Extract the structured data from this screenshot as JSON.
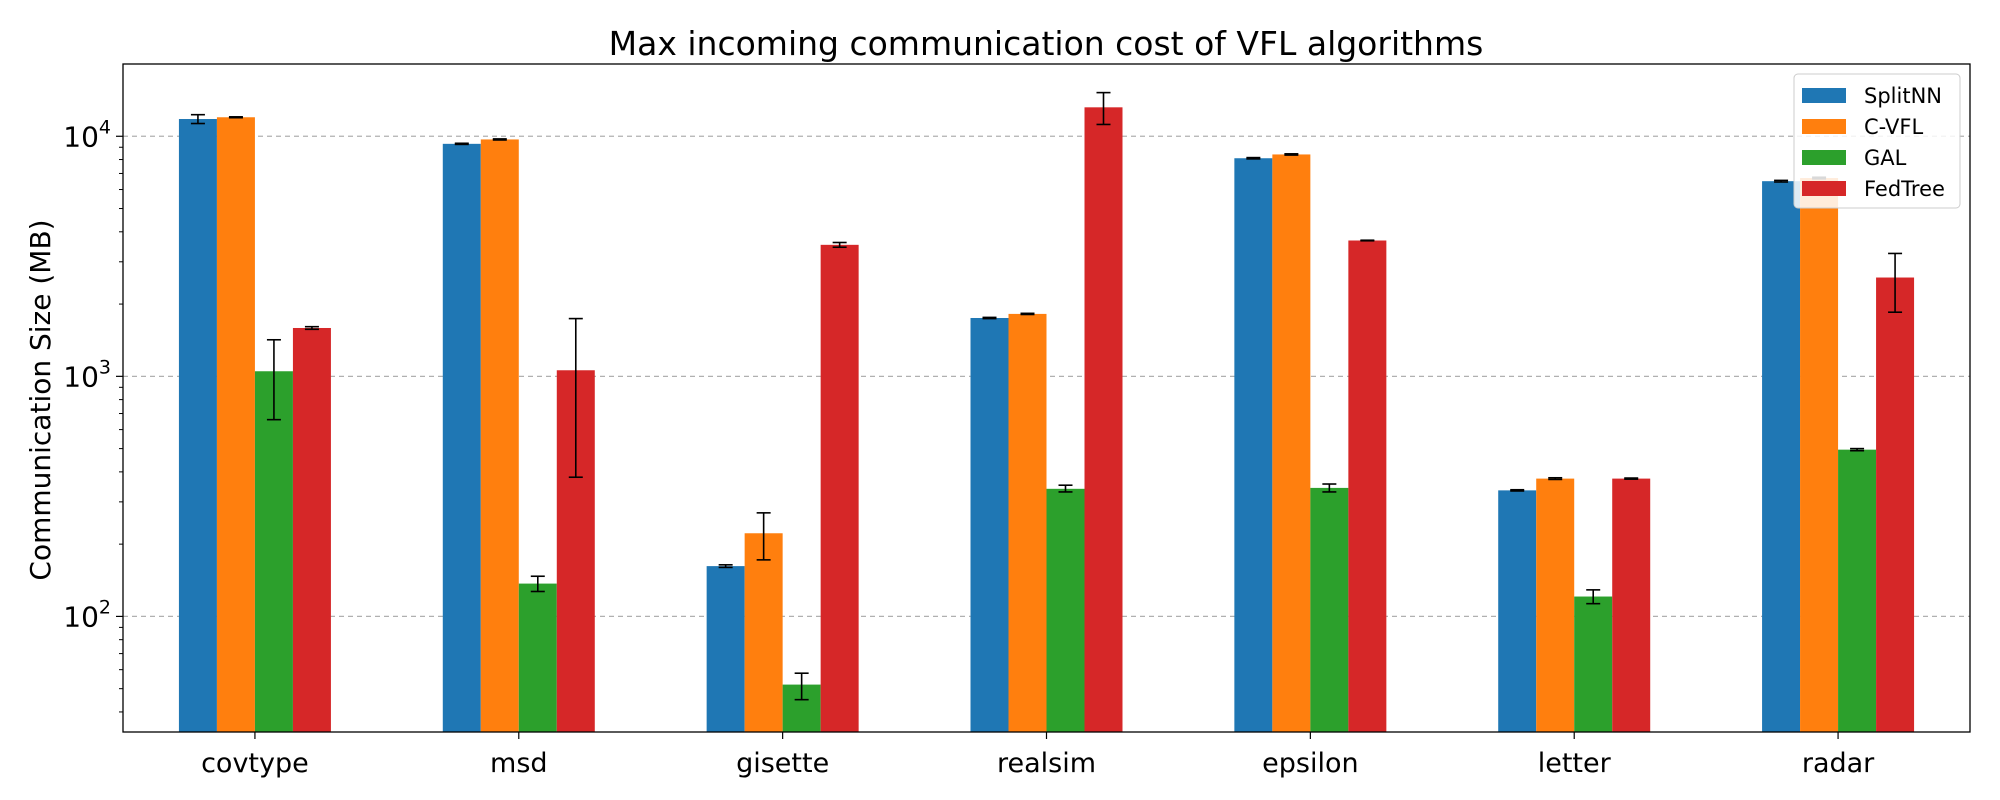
{
  "chart_data": {
    "type": "bar",
    "title": "Max incoming communication cost of VFL algorithms",
    "xlabel": "",
    "ylabel": "Communication Size (MB)",
    "yscale": "log",
    "ylim": [
      33,
      20000
    ],
    "ytick_values": [
      100,
      1000,
      10000
    ],
    "ytick_labels": [
      {
        "base": "10",
        "exp": "2"
      },
      {
        "base": "10",
        "exp": "3"
      },
      {
        "base": "10",
        "exp": "4"
      }
    ],
    "grid": "horizontal dashed",
    "legend_position": "top-right",
    "categories": [
      "covtype",
      "msd",
      "gisette",
      "realsim",
      "epsilon",
      "letter",
      "radar"
    ],
    "series": [
      {
        "name": "SplitNN",
        "color": "#1f77b4",
        "values": [
          11800,
          9300,
          162,
          1750,
          8100,
          335,
          6500
        ],
        "err_low": [
          11300,
          9250,
          160,
          1740,
          8050,
          333,
          6450
        ],
        "err_high": [
          12300,
          9350,
          164,
          1760,
          8150,
          337,
          6550
        ]
      },
      {
        "name": "C-VFL",
        "color": "#ff7f0e",
        "values": [
          12000,
          9700,
          222,
          1820,
          8400,
          375,
          6700
        ],
        "err_low": [
          11950,
          9650,
          172,
          1810,
          8350,
          372,
          6650
        ],
        "err_high": [
          12050,
          9750,
          270,
          1830,
          8450,
          378,
          6750
        ]
      },
      {
        "name": "GAL",
        "color": "#2ca02c",
        "values": [
          1050,
          137,
          52,
          340,
          343,
          121,
          495
        ],
        "err_low": [
          660,
          127,
          45,
          330,
          330,
          113,
          490
        ],
        "err_high": [
          1420,
          147,
          58,
          352,
          356,
          129,
          500
        ]
      },
      {
        "name": "FedTree",
        "color": "#d62728",
        "values": [
          1590,
          1060,
          3530,
          13200,
          3680,
          375,
          2580
        ],
        "err_low": [
          1570,
          380,
          3450,
          11200,
          3670,
          373,
          1850
        ],
        "err_high": [
          1610,
          1740,
          3610,
          15200,
          3690,
          377,
          3250
        ]
      }
    ]
  }
}
